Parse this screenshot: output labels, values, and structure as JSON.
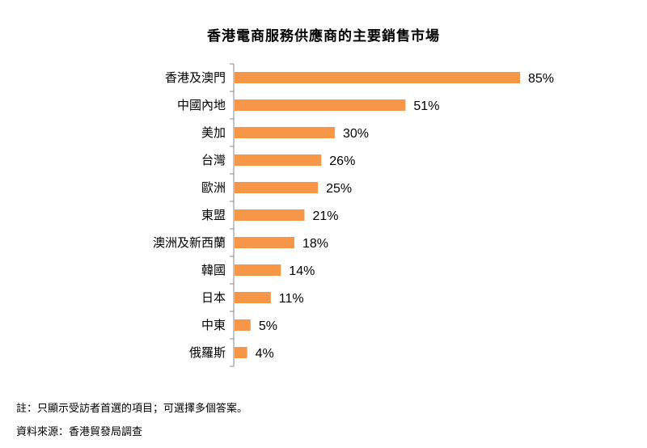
{
  "chart_data": {
    "type": "bar",
    "orientation": "horizontal",
    "title": "香港電商服務供應商的主要銷售市場",
    "categories": [
      "香港及澳門",
      "中國內地",
      "美加",
      "台灣",
      "歐洲",
      "東盟",
      "澳洲及新西蘭",
      "韓國",
      "日本",
      "中東",
      "俄羅斯"
    ],
    "values": [
      85,
      51,
      30,
      26,
      25,
      21,
      18,
      14,
      11,
      5,
      4
    ],
    "data_labels": [
      "85%",
      "51%",
      "30%",
      "26%",
      "25%",
      "21%",
      "18%",
      "14%",
      "11%",
      "5%",
      "4%"
    ],
    "xlim": [
      0,
      85
    ],
    "unit": "%",
    "grid": false,
    "legend": "none",
    "bar_color": "#F79646"
  },
  "footer": {
    "note": "註：只顯示受訪者首選的項目；可選擇多個答案。",
    "source": "資料來源：香港貿發局調查"
  }
}
